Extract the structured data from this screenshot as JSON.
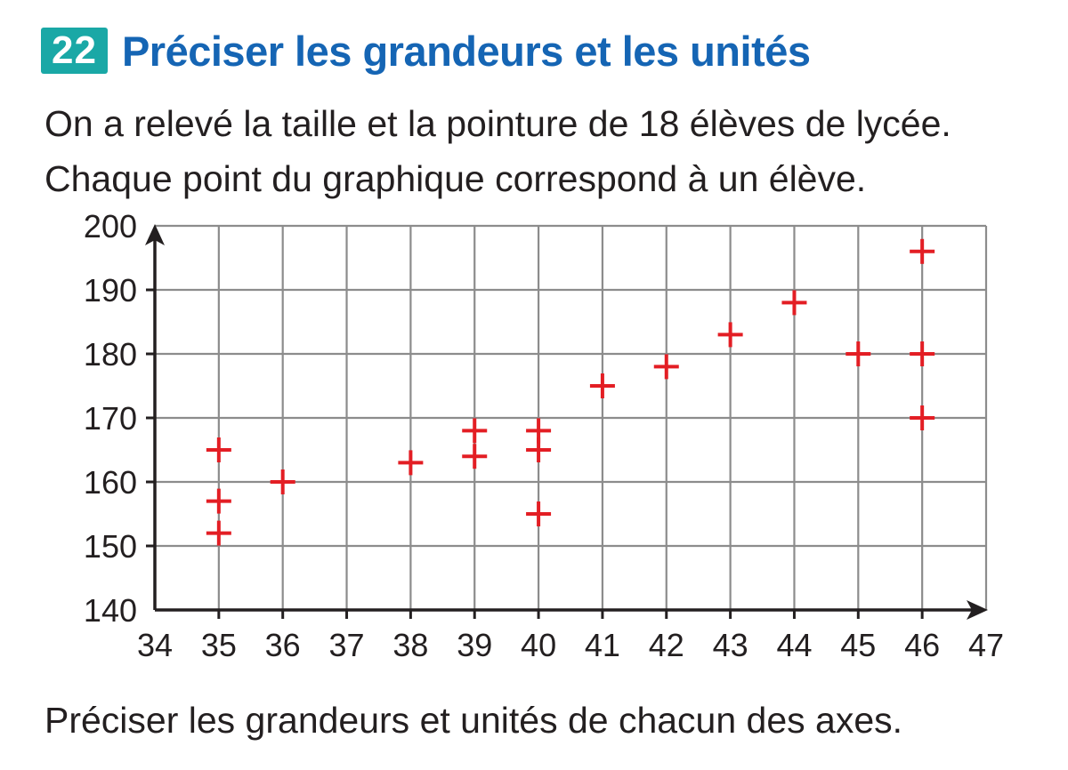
{
  "exercise": {
    "number": "22",
    "title": "Préciser les grandeurs et les unités",
    "intro_line1": "On a relevé la taille et la pointure de 18 élèves de lycée.",
    "intro_line2": "Chaque point du graphique correspond à un élève.",
    "question": "Préciser les grandeurs et unités de chacun des axes."
  },
  "colors": {
    "badge": "#1aa8a6",
    "title": "#1565b4",
    "marker": "#e31e24",
    "grid": "#8c8c8c",
    "axis": "#231f20"
  },
  "chart_data": {
    "type": "scatter",
    "marker": "plus",
    "xlim": [
      34,
      47
    ],
    "ylim": [
      140,
      200
    ],
    "x_ticks": [
      34,
      35,
      36,
      37,
      38,
      39,
      40,
      41,
      42,
      43,
      44,
      45,
      46,
      47
    ],
    "y_ticks": [
      140,
      150,
      160,
      170,
      180,
      190,
      200
    ],
    "grid": true,
    "xlabel": "",
    "ylabel": "",
    "points": [
      {
        "x": 35,
        "y": 152
      },
      {
        "x": 35,
        "y": 157
      },
      {
        "x": 35,
        "y": 165
      },
      {
        "x": 36,
        "y": 160
      },
      {
        "x": 38,
        "y": 163
      },
      {
        "x": 39,
        "y": 164
      },
      {
        "x": 39,
        "y": 168
      },
      {
        "x": 40,
        "y": 155
      },
      {
        "x": 40,
        "y": 165
      },
      {
        "x": 40,
        "y": 168
      },
      {
        "x": 41,
        "y": 175
      },
      {
        "x": 42,
        "y": 178
      },
      {
        "x": 43,
        "y": 183
      },
      {
        "x": 44,
        "y": 188
      },
      {
        "x": 45,
        "y": 180
      },
      {
        "x": 46,
        "y": 170
      },
      {
        "x": 46,
        "y": 180
      },
      {
        "x": 46,
        "y": 196
      }
    ]
  }
}
